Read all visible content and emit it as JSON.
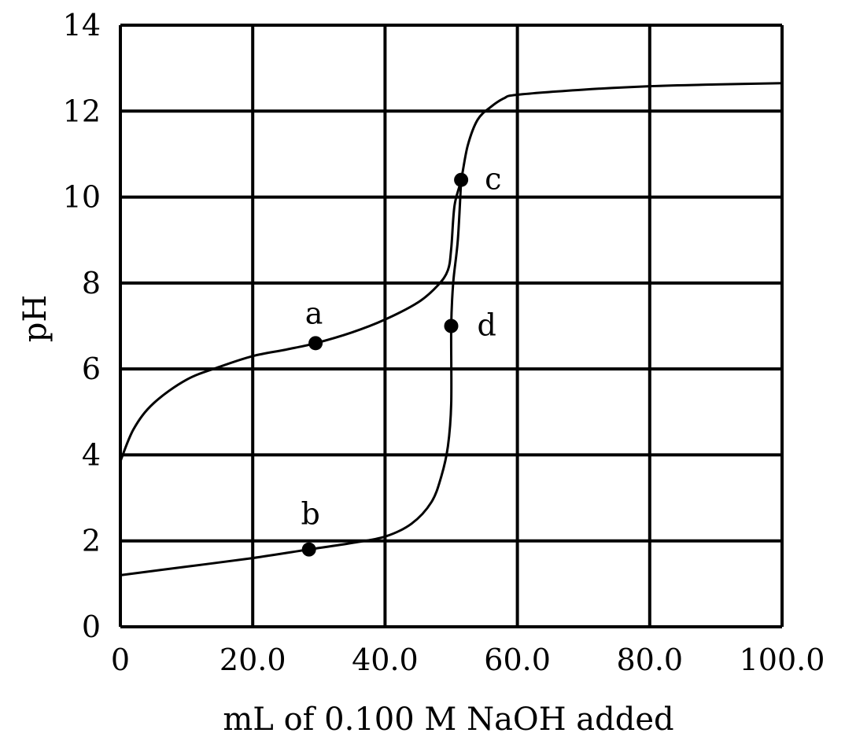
{
  "chart_data": {
    "type": "line",
    "title": "",
    "xlabel": "mL of 0.100 M NaOH added",
    "ylabel": "pH",
    "xlim": [
      0,
      100
    ],
    "ylim": [
      0,
      14
    ],
    "grid": true,
    "x_ticks": [
      0,
      20,
      40,
      60,
      80,
      100
    ],
    "x_tick_labels": [
      "0",
      "20.0",
      "40.0",
      "60.0",
      "80.0",
      "100.0"
    ],
    "y_ticks": [
      0,
      2,
      4,
      6,
      8,
      10,
      12,
      14
    ],
    "y_tick_labels": [
      "0",
      "2",
      "4",
      "6",
      "8",
      "10",
      "12",
      "14"
    ],
    "series": [
      {
        "points": [
          [
            0,
            3.85
          ],
          [
            2,
            4.6
          ],
          [
            5,
            5.2
          ],
          [
            10,
            5.75
          ],
          [
            15,
            6.05
          ],
          [
            20,
            6.3
          ],
          [
            25,
            6.45
          ],
          [
            29.5,
            6.6
          ],
          [
            35,
            6.85
          ],
          [
            40,
            7.15
          ],
          [
            45,
            7.55
          ],
          [
            48,
            7.95
          ],
          [
            49.5,
            8.3
          ],
          [
            50,
            8.8
          ],
          [
            50.5,
            9.8
          ],
          [
            51.5,
            10.4
          ],
          [
            52.5,
            11.2
          ],
          [
            54,
            11.8
          ],
          [
            56,
            12.1
          ],
          [
            58,
            12.3
          ],
          [
            60,
            12.38
          ],
          [
            70,
            12.5
          ],
          [
            80,
            12.58
          ],
          [
            90,
            12.62
          ],
          [
            100,
            12.65
          ]
        ]
      },
      {
        "points": [
          [
            0,
            1.2
          ],
          [
            10,
            1.4
          ],
          [
            20,
            1.6
          ],
          [
            28.5,
            1.8
          ],
          [
            35,
            1.95
          ],
          [
            40,
            2.1
          ],
          [
            44,
            2.4
          ],
          [
            47,
            2.9
          ],
          [
            48.5,
            3.5
          ],
          [
            49.5,
            4.2
          ],
          [
            50,
            5.2
          ],
          [
            50,
            7.0
          ],
          [
            50.3,
            8.0
          ],
          [
            51,
            9.0
          ],
          [
            51.5,
            10.4
          ]
        ]
      }
    ],
    "points": [
      {
        "label": "a",
        "x": 29.5,
        "y": 6.6
      },
      {
        "label": "b",
        "x": 28.5,
        "y": 1.8
      },
      {
        "label": "c",
        "x": 51.5,
        "y": 10.4
      },
      {
        "label": "d",
        "x": 50.0,
        "y": 7.0
      }
    ]
  }
}
